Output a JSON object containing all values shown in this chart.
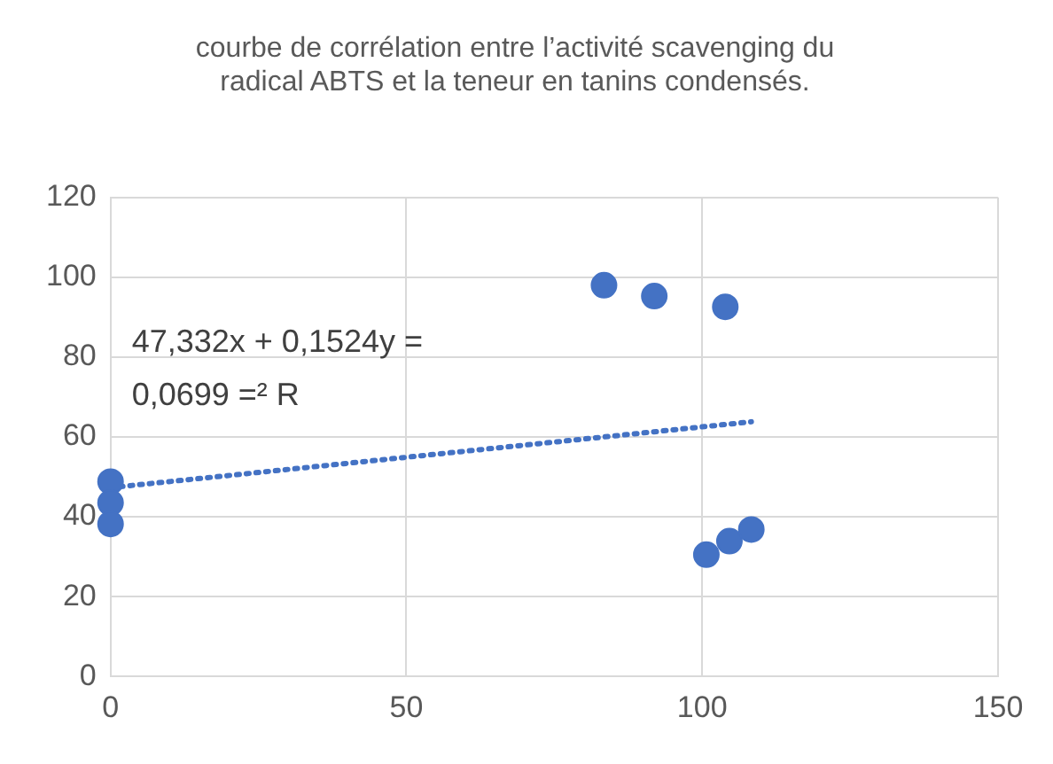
{
  "chart_data": {
    "type": "scatter",
    "title": "courbe de corrélation entre l’activité scavenging du radical ABTS et la teneur en tanins condensés.",
    "series": [
      {
        "type": "scatter",
        "color": "#4472c4",
        "x": [
          0,
          0,
          0,
          83.4,
          91.9,
          103.9,
          100.7,
          104.6,
          108.3
        ],
        "values": [
          48.8,
          43.5,
          38.2,
          98,
          95.3,
          92.6,
          30.5,
          33.9,
          36.8
        ],
        "marker": "circle"
      },
      {
        "type": "line",
        "color": "#4472c4",
        "x": [
          0,
          108.3
        ],
        "values": [
          47.3,
          63.8
        ],
        "line_style": "dotted",
        "marker": "none"
      }
    ],
    "annotations": [
      "47,332x + 0,1524y =",
      "0,0699 =² R"
    ],
    "xlim": [
      0,
      150
    ],
    "xticks": [
      0,
      50,
      100,
      150
    ],
    "ylim": [
      0,
      120
    ],
    "yticks": [
      0,
      20,
      40,
      60,
      80,
      100,
      120
    ],
    "grid": true,
    "legend": false
  }
}
